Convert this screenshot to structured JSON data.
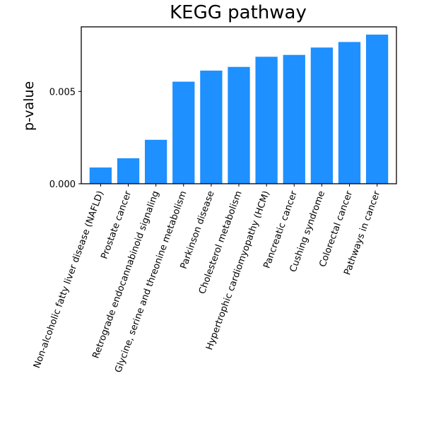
{
  "chart_data": {
    "type": "bar",
    "title": "KEGG pathway",
    "xlabel": "",
    "ylabel": "p-value",
    "ylim": [
      0,
      0.0085
    ],
    "yticks": [
      {
        "value": 0,
        "label": "0.000"
      },
      {
        "value": 0.005,
        "label": "0.005"
      }
    ],
    "grid": false,
    "bar_color": "#1e90ff",
    "categories": [
      "Non-alcoholic fatty liver disease (NAFLD)",
      "Prostate cancer",
      "Retrograde endocannabinoid signaling",
      "Glycine, serine and threonine metabolism",
      "Parkinson disease",
      "Cholesterol metabolism",
      "Hypertrophic cardiomyopathy (HCM)",
      "Pancreatic cancer",
      "Cushing syndrome",
      "Colorectal cancer",
      "Pathways in cancer"
    ],
    "values": [
      0.00088,
      0.00138,
      0.00238,
      0.00553,
      0.00613,
      0.00633,
      0.00688,
      0.00698,
      0.00738,
      0.00768,
      0.00808
    ]
  }
}
